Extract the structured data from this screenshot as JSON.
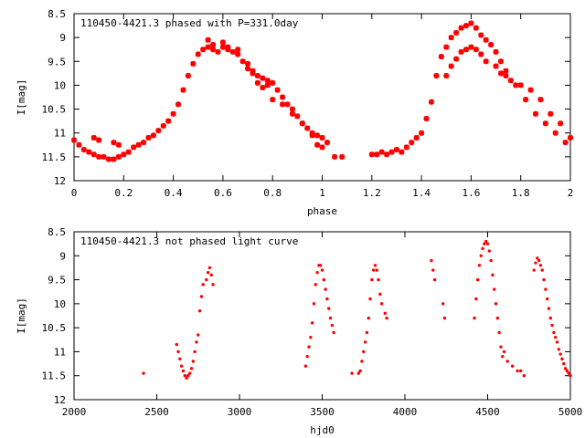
{
  "chart_data": [
    {
      "type": "scatter",
      "title": "110450-4421.3 phased with P=331.0day",
      "xlabel": "phase",
      "ylabel": "I[mag]",
      "xlim": [
        0,
        2
      ],
      "ylim": [
        12,
        8.5
      ],
      "y_inverted": true,
      "grid": false,
      "marker_color": "#ff0000",
      "marker_style": "plus-star",
      "xticks": [
        {
          "v": 0,
          "label": "0"
        },
        {
          "v": 0.2,
          "label": "0.2"
        },
        {
          "v": 0.4,
          "label": "0.4"
        },
        {
          "v": 0.6,
          "label": "0.6"
        },
        {
          "v": 0.8,
          "label": "0.8"
        },
        {
          "v": 1,
          "label": "1"
        },
        {
          "v": 1.2,
          "label": "1.2"
        },
        {
          "v": 1.4,
          "label": "1.4"
        },
        {
          "v": 1.6,
          "label": "1.6"
        },
        {
          "v": 1.8,
          "label": "1.8"
        },
        {
          "v": 2,
          "label": "2"
        }
      ],
      "yticks": [
        {
          "v": 8.5,
          "label": "8.5"
        },
        {
          "v": 9,
          "label": "9"
        },
        {
          "v": 9.5,
          "label": "9.5"
        },
        {
          "v": 10,
          "label": "10"
        },
        {
          "v": 10.5,
          "label": "10.5"
        },
        {
          "v": 11,
          "label": "11"
        },
        {
          "v": 11.5,
          "label": "11.5"
        },
        {
          "v": 12,
          "label": "12"
        }
      ],
      "series": [
        {
          "x": [
            0.0,
            0.02,
            0.04,
            0.06,
            0.08,
            0.1,
            0.12,
            0.14,
            0.16,
            0.18,
            0.2,
            0.22,
            0.24,
            0.26,
            0.28,
            0.3,
            0.32,
            0.34,
            0.36,
            0.38,
            0.4,
            0.42,
            0.44,
            0.46,
            0.48,
            0.5,
            0.52,
            0.54,
            0.56,
            0.58,
            0.6,
            0.62,
            0.64,
            0.66,
            0.68,
            0.7,
            0.72,
            0.74,
            0.76,
            0.78,
            0.8,
            0.82,
            0.84,
            0.86,
            0.88,
            0.9,
            0.92,
            0.94,
            0.96,
            0.98,
            1.0,
            1.02,
            1.05,
            1.08,
            0.08,
            0.1,
            0.16,
            0.18,
            0.54,
            0.56,
            0.6,
            0.62,
            0.66,
            0.7,
            0.72,
            0.74,
            0.76,
            0.78,
            0.8,
            0.84,
            0.88,
            0.92,
            0.96,
            1.0,
            0.98,
            1.2,
            1.22,
            1.24,
            1.26,
            1.28,
            1.3,
            1.32,
            1.34,
            1.36,
            1.38,
            1.4,
            1.42,
            1.44,
            1.46,
            1.48,
            1.5,
            1.52,
            1.54,
            1.56,
            1.58,
            1.6,
            1.62,
            1.64,
            1.66,
            1.68,
            1.7,
            1.72,
            1.74,
            1.76,
            1.8,
            1.84,
            1.88,
            1.92,
            1.96,
            2.0,
            1.5,
            1.52,
            1.54,
            1.56,
            1.58,
            1.6,
            1.62,
            1.64,
            1.66,
            1.7,
            1.72,
            1.74,
            1.78,
            1.82,
            1.86,
            1.9,
            1.94,
            1.98
          ],
          "y": [
            11.15,
            11.25,
            11.35,
            11.4,
            11.45,
            11.5,
            11.5,
            11.55,
            11.55,
            11.5,
            11.45,
            11.4,
            11.3,
            11.25,
            11.2,
            11.1,
            11.05,
            10.95,
            10.85,
            10.75,
            10.6,
            10.4,
            10.1,
            9.8,
            9.55,
            9.35,
            9.25,
            9.2,
            9.25,
            9.3,
            9.2,
            9.25,
            9.3,
            9.35,
            9.5,
            9.65,
            9.75,
            9.8,
            9.85,
            9.9,
            9.95,
            10.1,
            10.25,
            10.4,
            10.5,
            10.65,
            10.8,
            10.9,
            11.0,
            11.05,
            11.1,
            11.2,
            11.5,
            11.5,
            11.1,
            11.15,
            11.2,
            11.25,
            9.05,
            9.15,
            9.1,
            9.2,
            9.25,
            9.55,
            9.7,
            9.95,
            10.05,
            10.0,
            10.3,
            10.4,
            10.6,
            10.8,
            11.05,
            11.3,
            11.25,
            11.45,
            11.45,
            11.4,
            11.45,
            11.4,
            11.35,
            11.4,
            11.3,
            11.2,
            11.1,
            11.0,
            10.7,
            10.35,
            9.8,
            9.4,
            9.2,
            9.0,
            8.9,
            8.8,
            8.75,
            8.7,
            8.8,
            8.95,
            9.05,
            9.15,
            9.3,
            9.5,
            9.7,
            9.9,
            10.0,
            10.1,
            10.3,
            10.6,
            10.8,
            11.1,
            9.8,
            9.6,
            9.45,
            9.3,
            9.25,
            9.2,
            9.25,
            9.35,
            9.5,
            9.6,
            9.75,
            9.8,
            10.0,
            10.3,
            10.6,
            10.8,
            11.0,
            11.2
          ]
        }
      ]
    },
    {
      "type": "scatter",
      "title": "110450-4421.3 not phased light curve",
      "xlabel": "hjd0",
      "ylabel": "I[mag]",
      "xlim": [
        2000,
        5000
      ],
      "ylim": [
        12,
        8.5
      ],
      "y_inverted": true,
      "grid": false,
      "marker_color": "#ff0000",
      "marker_style": "dot",
      "xticks": [
        {
          "v": 2000,
          "label": "2000"
        },
        {
          "v": 2500,
          "label": "2500"
        },
        {
          "v": 3000,
          "label": "3000"
        },
        {
          "v": 3500,
          "label": "3500"
        },
        {
          "v": 4000,
          "label": "4000"
        },
        {
          "v": 4500,
          "label": "4500"
        },
        {
          "v": 5000,
          "label": "5000"
        }
      ],
      "yticks": [
        {
          "v": 8.5,
          "label": "8.5"
        },
        {
          "v": 9,
          "label": "9"
        },
        {
          "v": 9.5,
          "label": "9.5"
        },
        {
          "v": 10,
          "label": "10"
        },
        {
          "v": 10.5,
          "label": "10.5"
        },
        {
          "v": 11,
          "label": "11"
        },
        {
          "v": 11.5,
          "label": "11.5"
        },
        {
          "v": 12,
          "label": "12"
        }
      ],
      "series": [
        {
          "x": [
            2420,
            2620,
            2630,
            2640,
            2650,
            2660,
            2670,
            2680,
            2690,
            2700,
            2710,
            2720,
            2730,
            2740,
            2750,
            2760,
            2770,
            2780,
            2800,
            2810,
            2820,
            2830,
            2840,
            3400,
            3410,
            3420,
            3430,
            3440,
            3450,
            3460,
            3470,
            3480,
            3490,
            3500,
            3510,
            3520,
            3530,
            3540,
            3550,
            3560,
            3570,
            3680,
            3720,
            3730,
            3740,
            3750,
            3760,
            3770,
            3780,
            3790,
            3800,
            3810,
            3820,
            3830,
            3840,
            3850,
            3860,
            3880,
            3890,
            4160,
            4170,
            4180,
            4230,
            4240,
            4420,
            4430,
            4440,
            4450,
            4460,
            4470,
            4480,
            4490,
            4500,
            4510,
            4520,
            4530,
            4540,
            4550,
            4560,
            4570,
            4580,
            4590,
            4600,
            4620,
            4650,
            4680,
            4700,
            4720,
            4780,
            4790,
            4800,
            4810,
            4820,
            4830,
            4840,
            4850,
            4860,
            4870,
            4880,
            4890,
            4900,
            4910,
            4920,
            4930,
            4940,
            4950,
            4960,
            4970,
            4980,
            4990,
            5000
          ],
          "y": [
            11.45,
            10.85,
            11.0,
            11.15,
            11.3,
            11.4,
            11.5,
            11.55,
            11.5,
            11.45,
            11.35,
            11.2,
            11.0,
            10.8,
            10.65,
            10.15,
            9.85,
            9.6,
            9.5,
            9.35,
            9.25,
            9.4,
            9.6,
            11.3,
            11.1,
            10.9,
            10.7,
            10.4,
            10.0,
            9.6,
            9.35,
            9.2,
            9.2,
            9.3,
            9.5,
            9.7,
            9.9,
            10.1,
            10.3,
            10.45,
            10.6,
            11.45,
            11.45,
            11.4,
            11.2,
            11.0,
            10.8,
            10.6,
            10.3,
            9.9,
            9.5,
            9.3,
            9.2,
            9.3,
            9.5,
            9.8,
            10.0,
            10.2,
            10.3,
            9.1,
            9.3,
            9.5,
            10.0,
            10.3,
            10.3,
            9.9,
            9.5,
            9.2,
            9.0,
            8.85,
            8.75,
            8.7,
            8.75,
            8.9,
            9.1,
            9.4,
            9.7,
            10.0,
            10.3,
            10.6,
            10.9,
            11.1,
            11.0,
            11.2,
            11.3,
            11.4,
            11.4,
            11.5,
            9.3,
            9.15,
            9.05,
            9.1,
            9.2,
            9.3,
            9.5,
            9.7,
            9.9,
            10.1,
            10.3,
            10.45,
            10.6,
            10.7,
            10.8,
            10.95,
            11.05,
            11.15,
            11.25,
            11.35,
            11.4,
            11.45,
            11.5
          ]
        }
      ]
    }
  ]
}
